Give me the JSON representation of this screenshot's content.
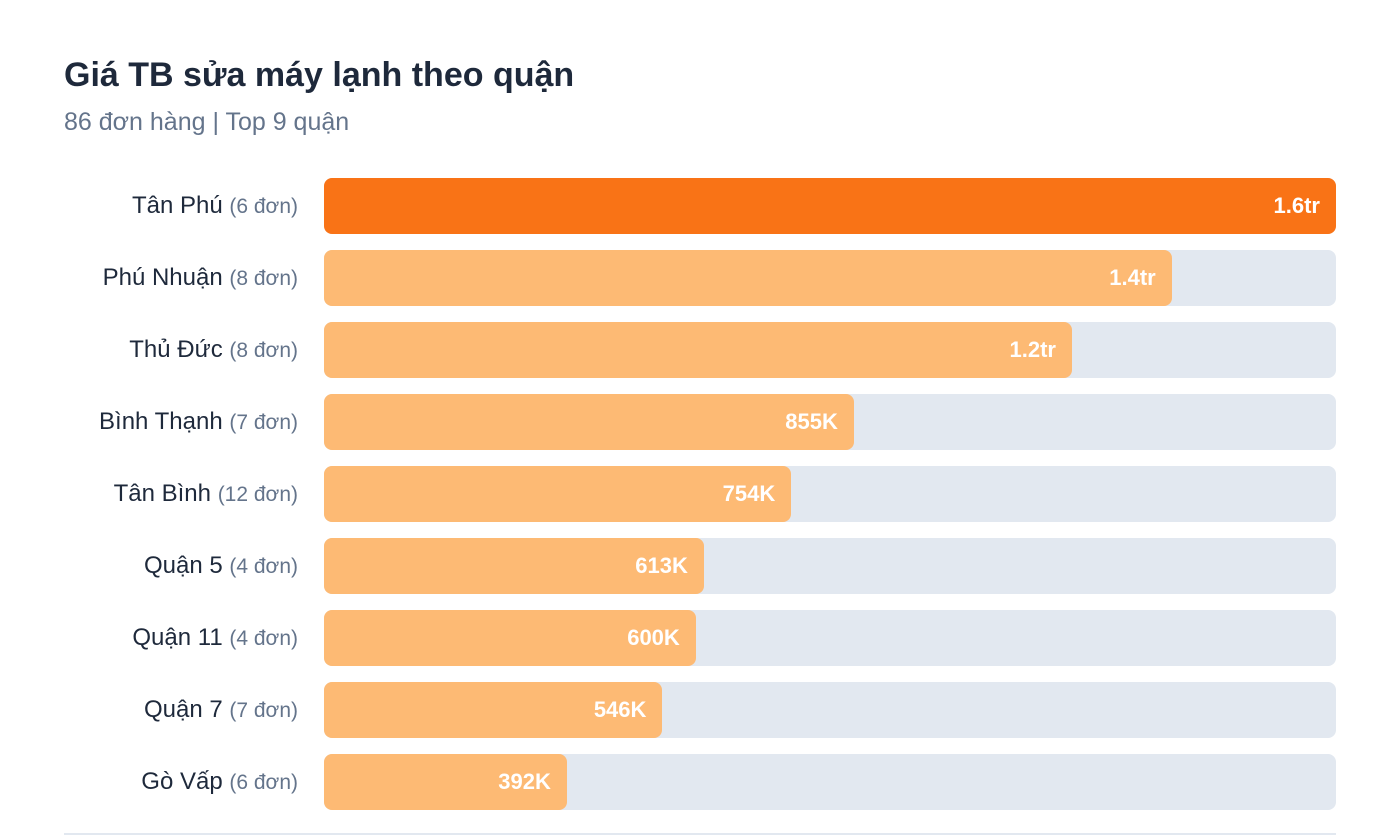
{
  "chart_data": {
    "type": "bar",
    "orientation": "horizontal",
    "title": "Giá TB sửa máy lạnh theo quận",
    "subtitle": "86 đơn hàng | Top 9 quận",
    "grid": false,
    "colors": {
      "highlight": "#f97316",
      "bar": "#fdba74",
      "track": "#e2e8f0"
    },
    "bars": [
      {
        "district": "Tân Phú",
        "orders": "(6 đơn)",
        "value": 1633000,
        "label": "1.6tr"
      },
      {
        "district": "Phú Nhuận",
        "orders": "(8 đơn)",
        "value": 1368000,
        "label": "1.4tr"
      },
      {
        "district": "Thủ Đức",
        "orders": "(8 đơn)",
        "value": 1207000,
        "label": "1.2tr"
      },
      {
        "district": "Bình Thạnh",
        "orders": "(7 đơn)",
        "value": 855000,
        "label": "855K"
      },
      {
        "district": "Tân Bình",
        "orders": "(12 đơn)",
        "value": 754000,
        "label": "754K"
      },
      {
        "district": "Quận 5",
        "orders": "(4 đơn)",
        "value": 613000,
        "label": "613K"
      },
      {
        "district": "Quận 11",
        "orders": "(4 đơn)",
        "value": 600000,
        "label": "600K"
      },
      {
        "district": "Quận 7",
        "orders": "(7 đơn)",
        "value": 546000,
        "label": "546K"
      },
      {
        "district": "Gò Vấp",
        "orders": "(6 đơn)",
        "value": 392000,
        "label": "392K"
      }
    ]
  }
}
